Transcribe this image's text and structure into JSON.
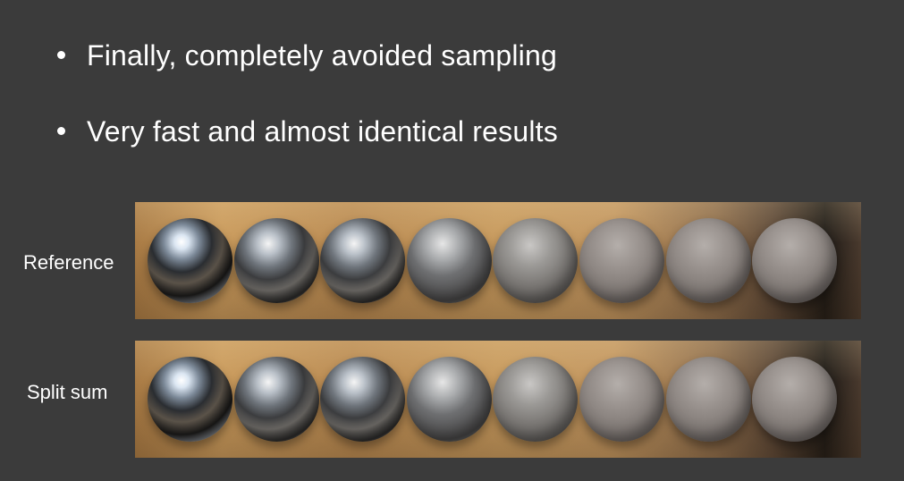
{
  "bullets": [
    "Finally, completely avoided sampling",
    "Very fast and almost identical results"
  ],
  "rows": [
    {
      "label": "Reference",
      "spheres": 8
    },
    {
      "label": "Split sum",
      "spheres": 8
    }
  ],
  "colors": {
    "background": "#3b3b3b",
    "text": "#ffffff",
    "strip_warm": "#c99a5c",
    "strip_dark": "#1e1a16"
  }
}
